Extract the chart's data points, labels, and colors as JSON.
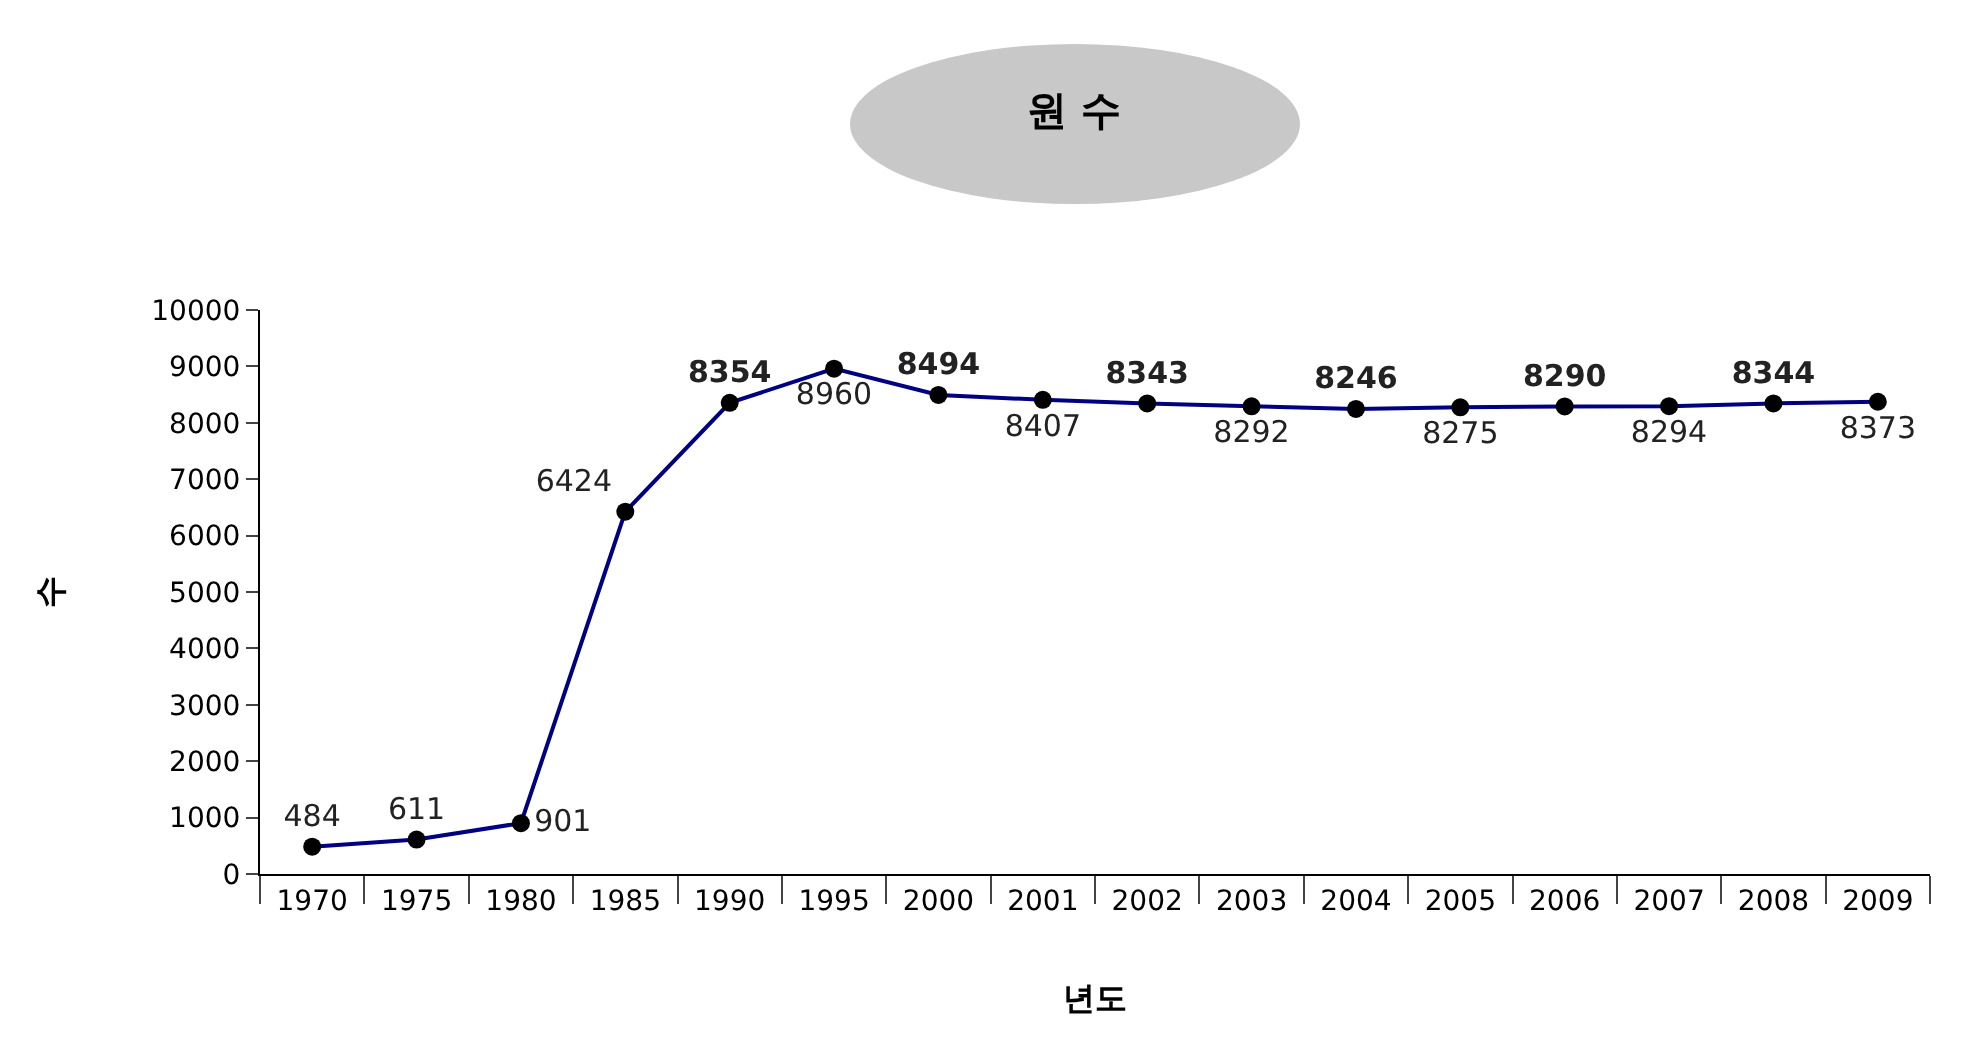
{
  "chart_data": {
    "type": "line",
    "title": "원 수",
    "xlabel": "년도",
    "ylabel": "수",
    "categories": [
      "1970",
      "1975",
      "1980",
      "1985",
      "1990",
      "1995",
      "2000",
      "2001",
      "2002",
      "2003",
      "2004",
      "2005",
      "2006",
      "2007",
      "2008",
      "2009"
    ],
    "series": [
      {
        "color": "#000080",
        "values": [
          484,
          611,
          901,
          6424,
          8354,
          8960,
          8494,
          8407,
          8343,
          8292,
          8246,
          8275,
          8290,
          8294,
          8344,
          8373
        ]
      }
    ],
    "ylim": [
      0,
      10000
    ],
    "yticks": [
      0,
      1000,
      2000,
      3000,
      4000,
      5000,
      6000,
      7000,
      8000,
      9000,
      10000
    ],
    "grid": false,
    "marker": "circle",
    "line_style": "solid",
    "data_labels": true
  }
}
